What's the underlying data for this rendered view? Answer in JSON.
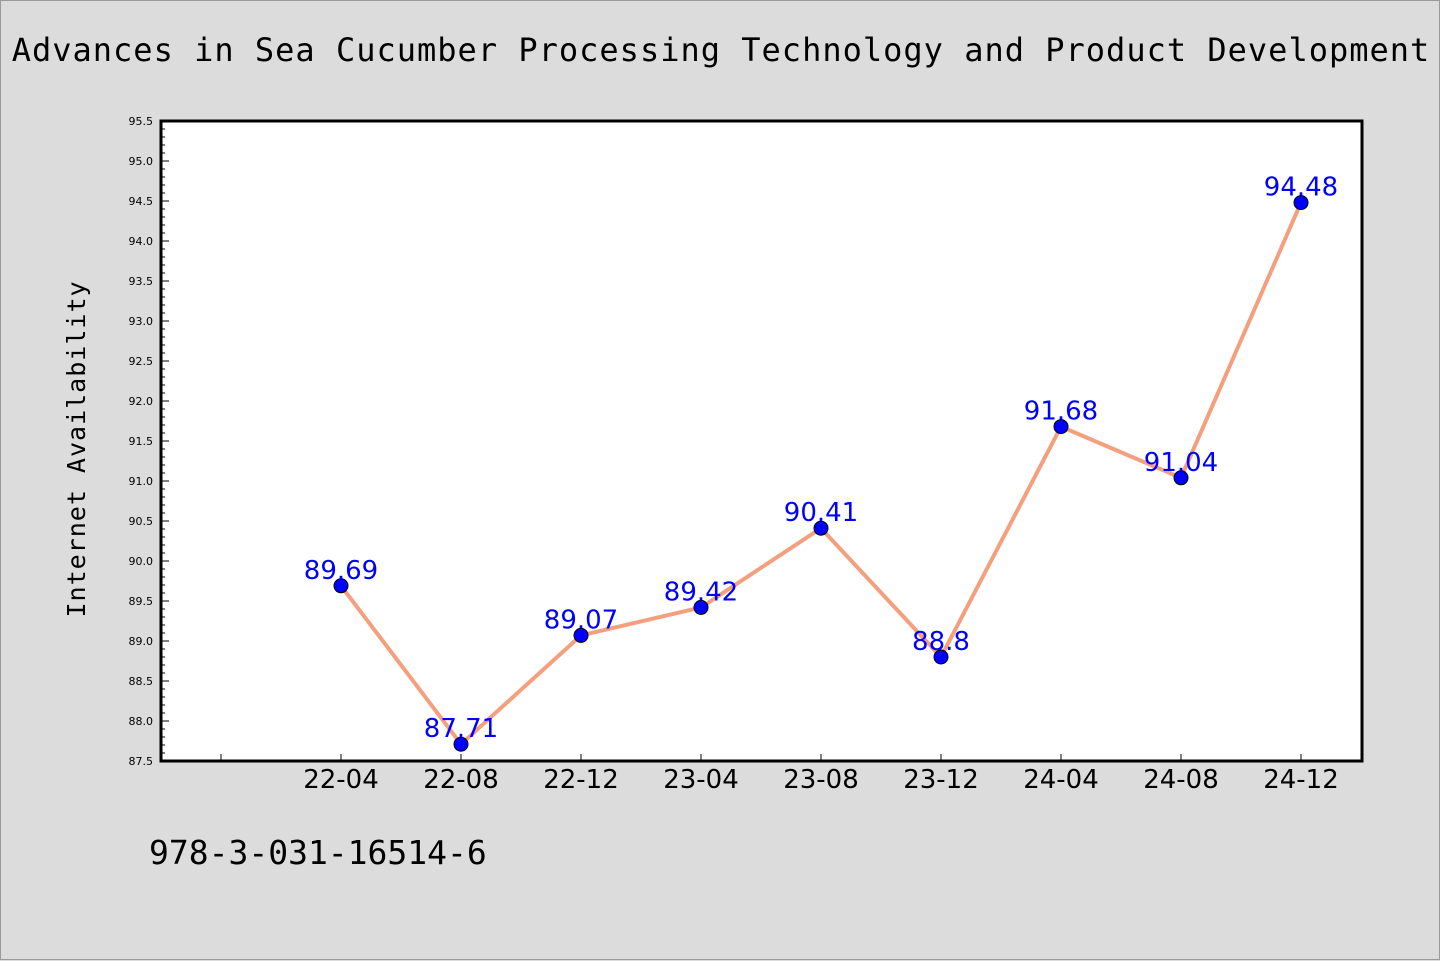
{
  "chart_data": {
    "type": "line",
    "title": "Advances in Sea Cucumber Processing Technology and Product Development",
    "ylabel": "Internet Availability",
    "xlabel": "",
    "categories": [
      "22-04",
      "22-08",
      "22-12",
      "23-04",
      "23-08",
      "23-12",
      "24-04",
      "24-08",
      "24-12"
    ],
    "series": [
      {
        "values": [
          89.69,
          87.71,
          89.07,
          89.42,
          90.41,
          88.8,
          91.68,
          91.04,
          94.48
        ]
      }
    ],
    "data_labels": [
      "89.69",
      "87.71",
      "89.07",
      "89.42",
      "90.41",
      "88.8",
      "91.68",
      "91.04",
      "94.48"
    ],
    "ylim": [
      87.5,
      95.5
    ],
    "y_ticks": [
      "87.5",
      "88.0",
      "88.5",
      "89.0",
      "89.5",
      "90.0",
      "90.5",
      "91.0",
      "91.5",
      "92.0",
      "92.5",
      "93.0",
      "93.5",
      "94.0",
      "94.5",
      "95.0",
      "95.5"
    ],
    "grid": false,
    "colors": {
      "line": "#f4a07e",
      "marker": "#0000ff",
      "label": "#0000ff"
    }
  },
  "footer": {
    "code": "978-3-031-16514-6"
  }
}
